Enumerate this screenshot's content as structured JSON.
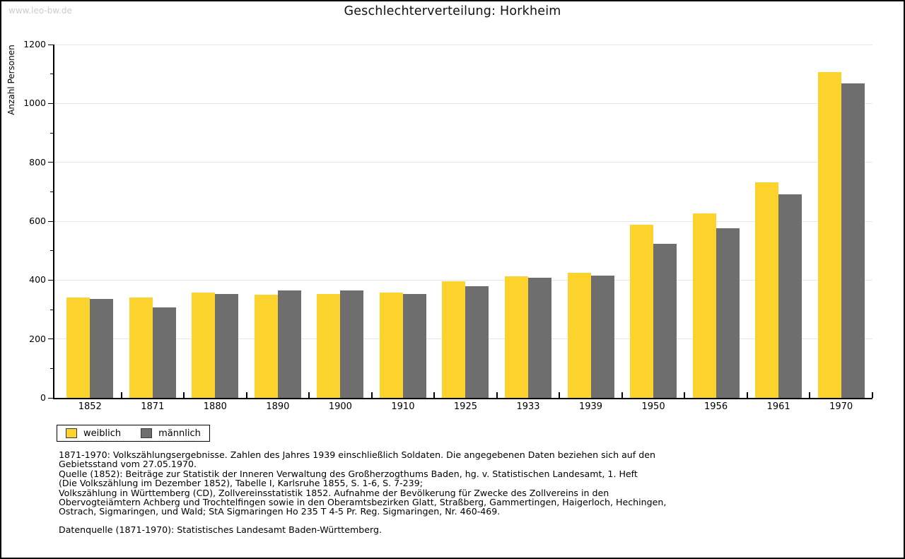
{
  "page": {
    "watermark": "www.leo-bw.de",
    "title": "Geschlechterverteilung: Horkheim"
  },
  "chart_data": {
    "type": "bar",
    "title": "Geschlechterverteilung: Horkheim",
    "xlabel": "",
    "ylabel": "Anzahl Personen",
    "ylim": [
      0,
      1200
    ],
    "ytick_interval": 200,
    "ytick_minor_interval": 100,
    "grid": true,
    "legend_position": "bottom-left",
    "categories": [
      "1852",
      "1871",
      "1880",
      "1890",
      "1900",
      "1910",
      "1925",
      "1933",
      "1939",
      "1950",
      "1956",
      "1961",
      "1970"
    ],
    "series": [
      {
        "name": "weiblich",
        "color": "#FCD32D",
        "values": [
          341,
          341,
          358,
          351,
          354,
          357,
          395,
          413,
          425,
          588,
          627,
          732,
          1106
        ]
      },
      {
        "name": "männlich",
        "color": "#6E6E6E",
        "values": [
          336,
          307,
          353,
          365,
          365,
          353,
          380,
          408,
          416,
          523,
          577,
          691,
          1067
        ]
      }
    ]
  },
  "footnotes": {
    "lines": [
      "1871-1970: Volkszählungsergebnisse. Zahlen des Jahres 1939 einschließlich Soldaten. Die angegebenen Daten beziehen sich auf den",
      "Gebietsstand vom 27.05.1970.",
      "Quelle (1852): Beiträge zur Statistik der Inneren Verwaltung des Großherzogthums Baden, hg. v. Statistischen Landesamt, 1. Heft",
      "(Die Volkszählung im Dezember 1852), Tabelle I, Karlsruhe 1855, S. 1-6, S. 7-239;",
      "Volkszählung in Württemberg (CD), Zollvereinsstatistik 1852. Aufnahme der Bevölkerung für Zwecke des Zollvereins in den",
      "Obervogteiämtern Achberg und Trochtelfingen sowie in den Oberamtsbezirken Glatt, Straßberg, Gammertingen, Haigerloch, Hechingen,",
      "Ostrach, Sigmaringen, und Wald; StA Sigmaringen Ho 235 T 4-5 Pr. Reg. Sigmaringen, Nr. 460-469."
    ],
    "datasource": "Datenquelle (1871-1970): Statistisches Landesamt Baden-Württemberg."
  }
}
